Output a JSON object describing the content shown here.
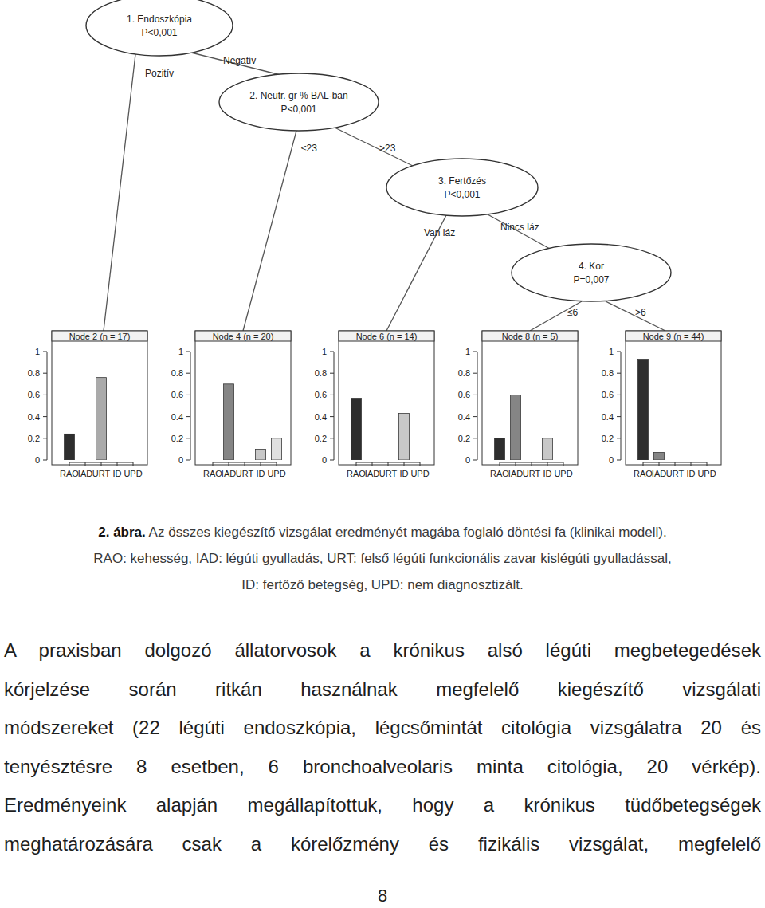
{
  "figure": {
    "tree": {
      "nodes": [
        {
          "label": "1. Endoszkópia",
          "p": "P<0,001",
          "branches": [
            "Pozitív",
            "Negatív"
          ]
        },
        {
          "label": "2. Neutr. gr % BAL-ban",
          "p": "P<0,001",
          "branches": [
            "≤23",
            ">23"
          ]
        },
        {
          "label": "3. Fertőzés",
          "p": "P<0,001",
          "branches": [
            "Van láz",
            "Nincs láz"
          ]
        },
        {
          "label": "4. Kor",
          "p": "P=0,007",
          "branches": [
            "≤6",
            ">6"
          ]
        }
      ]
    }
  },
  "chart_data": [
    {
      "type": "bar",
      "title": "Node 2 (n = 17)",
      "categories": [
        "RAO",
        "IAD",
        "URT",
        "ID",
        "UPD"
      ],
      "values": [
        0.24,
        0,
        0.76,
        0,
        0
      ],
      "colors": [
        "#2e2e2e",
        "#858585",
        "#aaaaaa",
        "#c8c8c8",
        "#e0e0e0"
      ],
      "ylim": [
        0,
        1
      ],
      "yticks": [
        0,
        0.2,
        0.4,
        0.6,
        0.8,
        1
      ]
    },
    {
      "type": "bar",
      "title": "Node 4 (n = 20)",
      "categories": [
        "RAO",
        "IAD",
        "URT",
        "ID",
        "UPD"
      ],
      "values": [
        0,
        0.7,
        0,
        0.1,
        0.2
      ],
      "colors": [
        "#2e2e2e",
        "#858585",
        "#aaaaaa",
        "#c8c8c8",
        "#e0e0e0"
      ],
      "ylim": [
        0,
        1
      ],
      "yticks": [
        0,
        0.2,
        0.4,
        0.6,
        0.8,
        1
      ]
    },
    {
      "type": "bar",
      "title": "Node 6 (n = 14)",
      "categories": [
        "RAO",
        "IAD",
        "URT",
        "ID",
        "UPD"
      ],
      "values": [
        0.57,
        0,
        0,
        0.43,
        0
      ],
      "colors": [
        "#2e2e2e",
        "#858585",
        "#aaaaaa",
        "#c8c8c8",
        "#e0e0e0"
      ],
      "ylim": [
        0,
        1
      ],
      "yticks": [
        0,
        0.2,
        0.4,
        0.6,
        0.8,
        1
      ]
    },
    {
      "type": "bar",
      "title": "Node 8 (n = 5)",
      "categories": [
        "RAO",
        "IAD",
        "URT",
        "ID",
        "UPD"
      ],
      "values": [
        0.2,
        0.6,
        0,
        0.2,
        0
      ],
      "colors": [
        "#2e2e2e",
        "#858585",
        "#aaaaaa",
        "#c8c8c8",
        "#e0e0e0"
      ],
      "ylim": [
        0,
        1
      ],
      "yticks": [
        0,
        0.2,
        0.4,
        0.6,
        0.8,
        1
      ]
    },
    {
      "type": "bar",
      "title": "Node 9 (n = 44)",
      "categories": [
        "RAO",
        "IAD",
        "URT",
        "ID",
        "UPD"
      ],
      "values": [
        0.93,
        0.07,
        0,
        0,
        0
      ],
      "colors": [
        "#2e2e2e",
        "#858585",
        "#aaaaaa",
        "#c8c8c8",
        "#e0e0e0"
      ],
      "ylim": [
        0,
        1
      ],
      "yticks": [
        0,
        0.2,
        0.4,
        0.6,
        0.8,
        1
      ]
    }
  ],
  "caption": {
    "label": "2. ábra.",
    "lines": [
      "Az összes kiegészítő vizsgálat eredményét magába foglaló döntési fa (klinikai modell).",
      "RAO: kehesség, IAD: légúti gyulladás, URT: felső légúti funkcionális zavar kislégúti gyulladással,",
      "ID: fertőző betegség, UPD: nem diagnosztizált."
    ]
  },
  "body": {
    "lines": [
      "A praxisban dolgozó állatorvosok a krónikus alsó légúti megbetegedések",
      "kórjelzése során ritkán használnak megfelelő kiegészítő vizsgálati",
      "módszereket (22 légúti endoszkópia, légcsőmintát citológia vizsgálatra 20 és",
      "tenyésztésre 8 esetben, 6 bronchoalveolaris minta citológia, 20 vérkép).",
      "Eredményeink alapján megállapítottuk, hogy a krónikus tüdőbetegségek",
      "meghatározására csak a kórelőzmény és fizikális vizsgálat, megfelelő"
    ]
  },
  "page_number": "8"
}
